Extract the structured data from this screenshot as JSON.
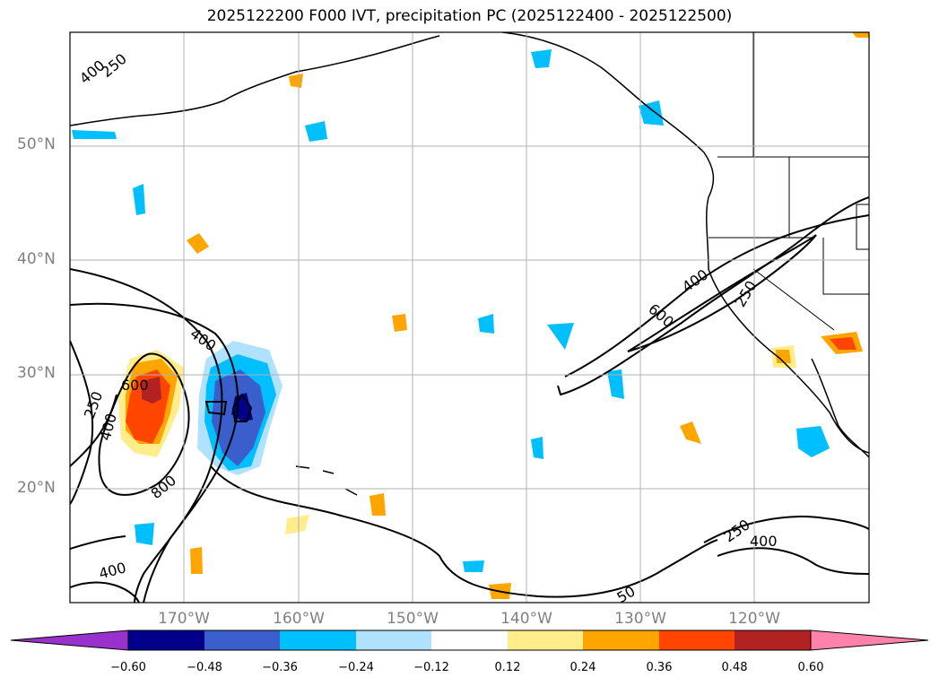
{
  "title": "2025122200 F000 IVT, precipitation PC (2025122400 - 2025122500)",
  "lat_labels": [
    "50°N",
    "40°N",
    "30°N",
    "20°N"
  ],
  "lon_labels": [
    "170°W",
    "160°W",
    "150°W",
    "140°W",
    "130°W",
    "120°W"
  ],
  "colorbar": {
    "ticks": [
      "−0.60",
      "−0.48",
      "−0.36",
      "−0.24",
      "−0.12",
      "0.12",
      "0.24",
      "0.36",
      "0.48",
      "0.60"
    ],
    "colors": [
      "#9932cc",
      "#00008b",
      "#3a5fcd",
      "#00bfff",
      "#b0e2ff",
      "#ffffff",
      "#ffec8b",
      "#ffa500",
      "#ff4500",
      "#b22222",
      "#ff82ab"
    ]
  },
  "contour_labels": [
    "400",
    "250",
    "400",
    "600",
    "250",
    "400",
    "800",
    "400",
    "400",
    "600",
    "250",
    "250",
    "400",
    "50"
  ]
}
